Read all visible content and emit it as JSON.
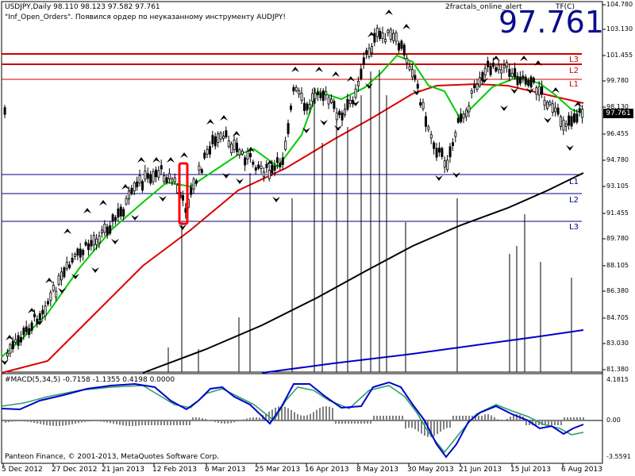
{
  "header": {
    "symbol_line": "USDJPY,Daily  98.110 98.123 97.582 97.761",
    "message_line": "\"Inf_Open_Orders\". Появился ордер по неуказанному инструменту AUDJPY!",
    "indicator_name": "2fractals_online_alert",
    "indicator_suffix": "TF(C)",
    "big_price": "97.761"
  },
  "price_axis": {
    "labels": [
      "104.780",
      "103.130",
      "101.455",
      "99.780",
      "98.130",
      "96.455",
      "94.780",
      "93.105",
      "91.455",
      "89.780",
      "88.105",
      "86.380",
      "84.705",
      "83.030",
      "81.380"
    ],
    "current_price": "97.761"
  },
  "levels": {
    "resistance": [
      "L3",
      "L2",
      "L1"
    ],
    "support": [
      "L1",
      "L2",
      "L3"
    ],
    "resistance_color": "#cc0000",
    "support_color": "#000080"
  },
  "macd": {
    "title": "#MACD(5,34,5) -0.7158 -1.1355 0.4198 0.0000",
    "axis_labels": [
      "4.1815",
      "0.00",
      "-3.5591"
    ]
  },
  "footer": {
    "copyright": "Panteon Finance, © 2001-2013, MetaQuotes Software Corp."
  },
  "date_axis": [
    "5 Dec 2012",
    "27 Dec 2012",
    "21 Jan 2013",
    "12 Feb 2013",
    "6 Mar 2013",
    "25 Mar 2013",
    "16 Apr 2013",
    "8 May 2013",
    "30 May 2013",
    "21 Jun 2013",
    "15 Jul 2013",
    "6 Aug 2013"
  ],
  "colors": {
    "fast_ma": "#00cc00",
    "mid_ma": "#dd0000",
    "slow_ma": "#000000",
    "slowest_ma": "#0000cc",
    "macd_line": "#0000cc",
    "signal_line": "#2e9e6e",
    "histogram": "#808080",
    "highlight_box": "#ff0000"
  }
}
